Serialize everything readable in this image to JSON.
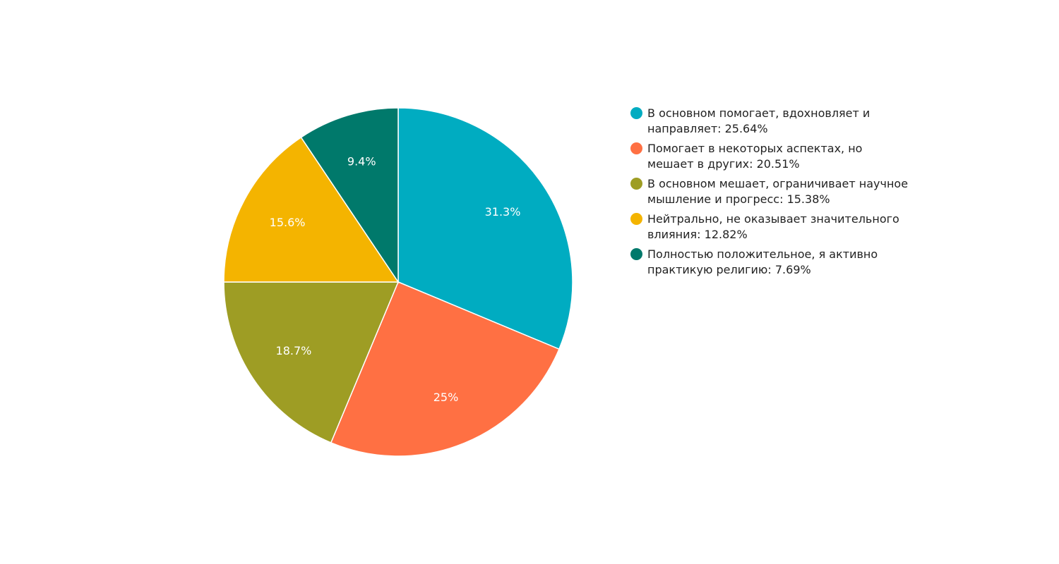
{
  "chart_data": {
    "type": "pie",
    "start_angle_deg": 90,
    "direction": "clockwise",
    "legend_position": "right",
    "slices": [
      {
        "legend": "В основном помогает, вдохновляет и направляет: 25.64%",
        "label": "31.3%",
        "value": 31.3,
        "color": "#00ACC1"
      },
      {
        "legend": "Помогает в некоторых аспектах, но мешает в других: 20.51%",
        "label": "25%",
        "value": 25,
        "color": "#FF7043"
      },
      {
        "legend": "В основном мешает, ограничивает научное мышление и прогресс: 15.38%",
        "label": "18.7%",
        "value": 18.7,
        "color": "#9E9D24"
      },
      {
        "legend": "Нейтрально, не оказывает значительного влияния: 12.82%",
        "label": "15.6%",
        "value": 15.6,
        "color": "#F4B400"
      },
      {
        "legend": "Полностью положительное, я активно практикую религию: 7.69%",
        "label": "9.4%",
        "value": 9.4,
        "color": "#00796B"
      }
    ]
  }
}
